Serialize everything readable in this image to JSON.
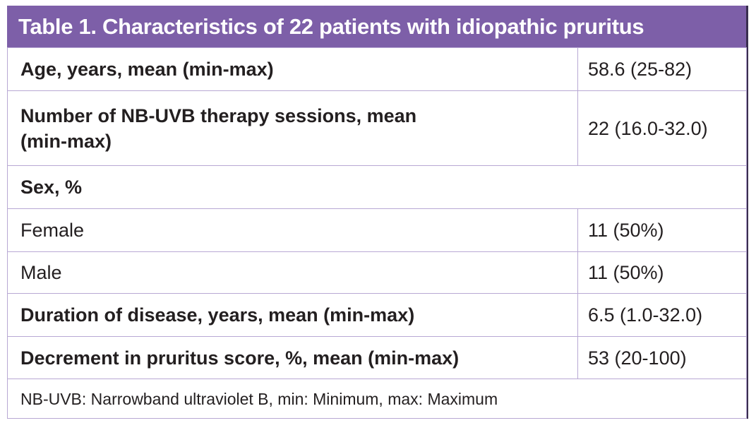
{
  "header": {
    "title": "Table 1. Characteristics of 22 patients with idiopathic pruritus"
  },
  "table": {
    "rows": [
      [
        "Age, years, mean (min-max)",
        "58.6 (25-82)"
      ],
      [
        "Number of NB-UVB therapy sessions, mean (min-max)",
        "22 (16.0-32.0)"
      ],
      [
        "Sex, %"
      ],
      [
        "Female",
        "11 (50%)"
      ],
      [
        "Male",
        "11 (50%)"
      ],
      [
        "Duration of disease, years, mean (min-max)",
        "6.5 (1.0-32.0)"
      ],
      [
        "Decrement in pruritus score, %, mean (min-max)",
        "53 (20-100)"
      ]
    ]
  },
  "footnote": "NB-UVB: Narrowband ultraviolet B, min: Minimum, max: Maximum"
}
